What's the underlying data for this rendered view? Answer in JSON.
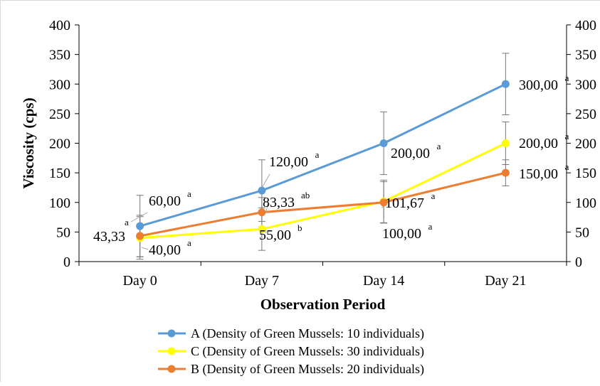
{
  "chart_data": {
    "type": "line",
    "categories": [
      "Day 0",
      "Day 7",
      "Day 14",
      "Day 21"
    ],
    "xlabel": "Observation Period",
    "ylabel": "Viscosity (cps)",
    "ylim": [
      0,
      400
    ],
    "yticks": [
      0,
      50,
      100,
      150,
      200,
      250,
      300,
      350,
      400
    ],
    "secondary_yticks": [
      "0",
      "50",
      "100",
      "150",
      "200",
      "250",
      "300",
      "350",
      "400"
    ],
    "grid": false,
    "legend_position": "bottom",
    "series": [
      {
        "name": "A (Density of Green Mussels: 10 individuals)",
        "color": "#5b9bd5",
        "values": [
          60,
          120,
          200,
          300
        ],
        "errors": [
          52,
          52,
          53,
          52
        ],
        "labels": [
          "60,00",
          "120,00",
          "200,00",
          "300,00"
        ],
        "letters": [
          "a",
          "a",
          "a",
          "a"
        ]
      },
      {
        "name": "C (Density of Green Mussels: 30 individuals)",
        "color": "#ffff00",
        "values": [
          40,
          55,
          101.67,
          200
        ],
        "errors": [
          36,
          36,
          36,
          36
        ],
        "labels": [
          "40,00",
          "55,00",
          "101,67",
          "200,00"
        ],
        "letters": [
          "a",
          "b",
          "a",
          "a"
        ]
      },
      {
        "name": "B (Density of Green Mussels: 20 individuals)",
        "color": "#ed7d31",
        "values": [
          43.33,
          83.33,
          100,
          150
        ],
        "errors": [
          35,
          25,
          35,
          22
        ],
        "labels": [
          "43,33",
          "83,33",
          "100,00",
          "150,00"
        ],
        "letters": [
          "a",
          "ab",
          "a",
          "a"
        ]
      }
    ]
  }
}
